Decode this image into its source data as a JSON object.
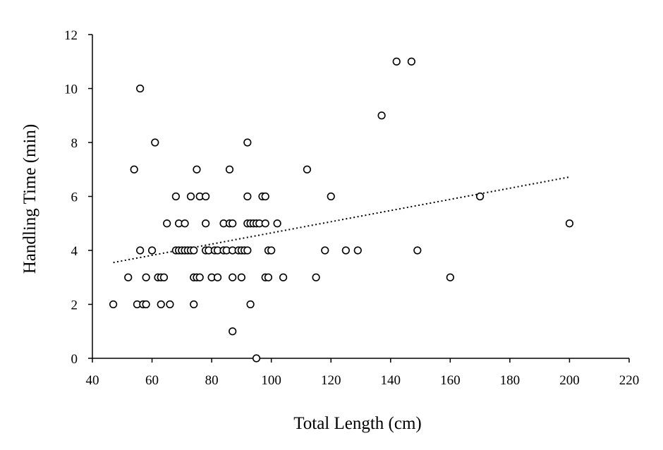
{
  "chart_data": {
    "type": "scatter",
    "xlabel": "Total Length (cm)",
    "ylabel": "Handling Time (min)",
    "xlim": [
      40,
      220
    ],
    "ylim": [
      0,
      12
    ],
    "xticks": [
      "40",
      "60",
      "80",
      "100",
      "120",
      "140",
      "160",
      "180",
      "200",
      "220"
    ],
    "yticks": [
      "0",
      "2",
      "4",
      "6",
      "8",
      "10",
      "12"
    ],
    "grid": false,
    "legend": "none",
    "trendline": {
      "type": "linear",
      "style": "dotted",
      "x": [
        47,
        200
      ],
      "y": [
        3.55,
        6.72
      ]
    },
    "series": [
      {
        "points": [
          [
            47,
            2
          ],
          [
            52,
            3
          ],
          [
            54,
            7
          ],
          [
            55,
            2
          ],
          [
            56,
            10
          ],
          [
            56,
            4
          ],
          [
            57,
            2
          ],
          [
            58,
            3
          ],
          [
            58,
            2
          ],
          [
            60,
            4
          ],
          [
            61,
            8
          ],
          [
            62,
            3
          ],
          [
            63,
            3
          ],
          [
            63,
            2
          ],
          [
            64,
            3
          ],
          [
            65,
            5
          ],
          [
            66,
            2
          ],
          [
            68,
            6
          ],
          [
            68,
            4
          ],
          [
            69,
            4
          ],
          [
            69,
            5
          ],
          [
            70,
            4
          ],
          [
            71,
            5
          ],
          [
            71,
            4
          ],
          [
            72,
            4
          ],
          [
            73,
            4
          ],
          [
            73,
            6
          ],
          [
            74,
            4
          ],
          [
            74,
            3
          ],
          [
            74,
            2
          ],
          [
            75,
            3
          ],
          [
            75,
            7
          ],
          [
            76,
            6
          ],
          [
            76,
            3
          ],
          [
            78,
            6
          ],
          [
            78,
            5
          ],
          [
            78,
            4
          ],
          [
            79,
            4
          ],
          [
            80,
            3
          ],
          [
            81,
            4
          ],
          [
            82,
            3
          ],
          [
            82,
            4
          ],
          [
            84,
            5
          ],
          [
            84,
            4
          ],
          [
            85,
            4
          ],
          [
            86,
            5
          ],
          [
            86,
            7
          ],
          [
            87,
            5
          ],
          [
            87,
            4
          ],
          [
            87,
            3
          ],
          [
            87,
            1
          ],
          [
            89,
            4
          ],
          [
            90,
            4
          ],
          [
            90,
            3
          ],
          [
            91,
            4
          ],
          [
            92,
            8
          ],
          [
            92,
            6
          ],
          [
            92,
            5
          ],
          [
            92,
            4
          ],
          [
            93,
            5
          ],
          [
            93,
            2
          ],
          [
            94,
            5
          ],
          [
            95,
            0
          ],
          [
            95,
            5
          ],
          [
            96,
            5
          ],
          [
            97,
            6
          ],
          [
            98,
            6
          ],
          [
            98,
            5
          ],
          [
            98,
            3
          ],
          [
            99,
            3
          ],
          [
            99,
            4
          ],
          [
            100,
            4
          ],
          [
            102,
            5
          ],
          [
            104,
            3
          ],
          [
            112,
            7
          ],
          [
            115,
            3
          ],
          [
            118,
            4
          ],
          [
            120,
            6
          ],
          [
            125,
            4
          ],
          [
            129,
            4
          ],
          [
            137,
            9
          ],
          [
            142,
            11
          ],
          [
            147,
            11
          ],
          [
            149,
            4
          ],
          [
            160,
            3
          ],
          [
            170,
            6
          ],
          [
            200,
            5
          ]
        ]
      }
    ]
  }
}
